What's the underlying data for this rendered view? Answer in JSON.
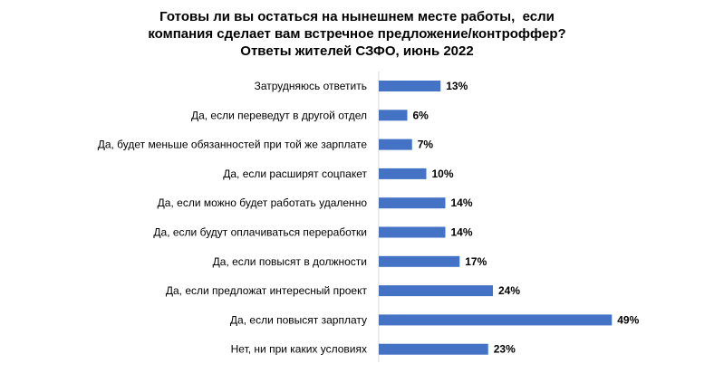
{
  "chart_data": {
    "type": "bar",
    "orientation": "horizontal",
    "title_lines": [
      "Готовы ли вы остаться на нынешнем месте работы,  если",
      "компания сделает вам встречное предложение/контроффер?",
      "Ответы жителей СЗФО, июнь 2022"
    ],
    "categories": [
      "Затрудняюсь ответить",
      "Да, если переведут в другой отдел",
      "Да, будет меньше обязанностей при той же зарплате",
      "Да, если расширят соцпакет",
      "Да, если можно будет работать удаленно",
      "Да, если будут оплачиваться переработки",
      "Да, если повысят в должности",
      "Да, если предложат интересный проект",
      "Да, если повысят зарплату",
      "Нет, ни при каких условиях"
    ],
    "values": [
      13,
      6,
      7,
      10,
      14,
      14,
      17,
      24,
      49,
      23
    ],
    "value_labels": [
      "13%",
      "6%",
      "7%",
      "10%",
      "14%",
      "14%",
      "17%",
      "24%",
      "49%",
      "23%"
    ],
    "unit": "%",
    "xlim": [
      0,
      50
    ],
    "grid": false,
    "legend": "none",
    "bar_color": "#4472C4"
  }
}
